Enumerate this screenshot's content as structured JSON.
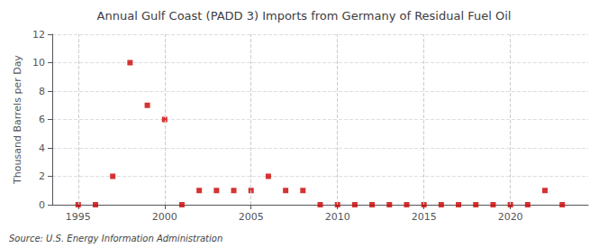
{
  "chart_data": {
    "type": "scatter",
    "title": "Annual Gulf Coast (PADD 3) Imports from Germany of Residual Fuel Oil",
    "ylabel": "Thousand Barrels per Day",
    "annotation": "Source: U.S. Energy Information Administration",
    "x": [
      1995,
      1996,
      1997,
      1998,
      1999,
      2000,
      2001,
      2002,
      2003,
      2004,
      2005,
      2006,
      2007,
      2008,
      2009,
      2010,
      2011,
      2012,
      2013,
      2014,
      2015,
      2016,
      2017,
      2018,
      2019,
      2020,
      2021,
      2022,
      2023
    ],
    "values": [
      0,
      0,
      2,
      10,
      7,
      6,
      0,
      1,
      1,
      1,
      1,
      2,
      1,
      1,
      0,
      0,
      0,
      0,
      0,
      0,
      0,
      0,
      0,
      0,
      0,
      0,
      0,
      1,
      0
    ],
    "color": "#cc0000",
    "marker": "square",
    "xlim": [
      1993.5,
      2024.5
    ],
    "xticks": [
      1995,
      2000,
      2005,
      2010,
      2015,
      2020
    ],
    "ylim": [
      0,
      12
    ],
    "yticks": [
      0,
      2,
      4,
      6,
      8,
      10,
      12
    ],
    "grid": true
  }
}
